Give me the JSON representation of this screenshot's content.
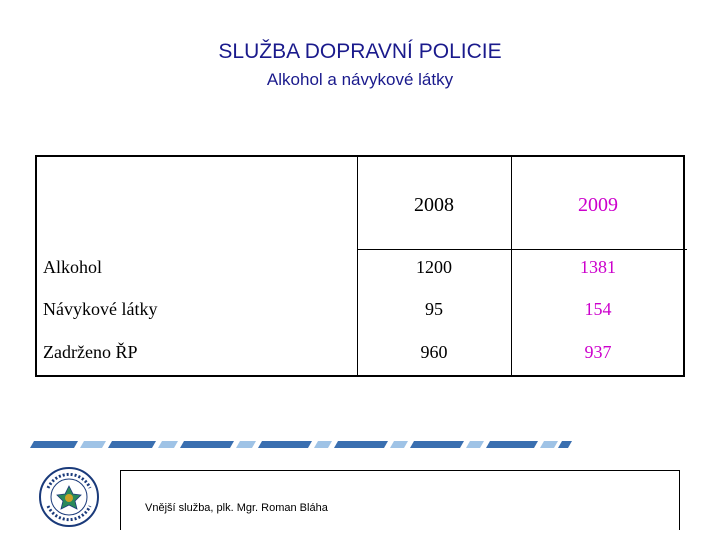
{
  "header": {
    "title": "SLUŽBA DOPRAVNÍ POLICIE",
    "subtitle": "Alkohol a návykové látky"
  },
  "table": {
    "columns": [
      "2008",
      "2009"
    ],
    "rows": [
      {
        "label": "Alkohol",
        "values": [
          "1200",
          "1381"
        ]
      },
      {
        "label": "Návykové látky",
        "values": [
          "95",
          "154"
        ]
      },
      {
        "label": "Zadrženo ŘP",
        "values": [
          "960",
          "937"
        ]
      }
    ],
    "colors": {
      "col_2008": "#000000",
      "col_2009": "#cc00cc"
    }
  },
  "footer": {
    "text": "Vnější služba,  plk. Mgr. Roman Bláha"
  },
  "logo": {
    "icon": "police-badge-icon",
    "text": "POLICIE ČESKÉ REPUBLIKY"
  }
}
